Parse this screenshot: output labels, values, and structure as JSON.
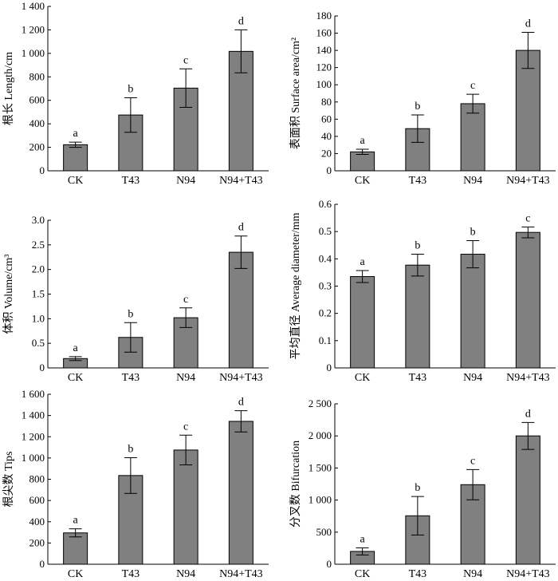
{
  "chart_data": [
    {
      "type": "bar",
      "id": "length",
      "categories": [
        "CK",
        "T43",
        "N94",
        "N94+T43"
      ],
      "values": [
        222,
        475,
        704,
        1017
      ],
      "errors": [
        22,
        147,
        164,
        183
      ],
      "significance": [
        "a",
        "b",
        "c",
        "d"
      ],
      "ylabel": "根长  Length/cm",
      "ylim": [
        0,
        1400
      ],
      "yticks": [
        0,
        200,
        400,
        600,
        800,
        1000,
        1200,
        1400
      ],
      "yticklabels": [
        "0",
        "200",
        "400",
        "600",
        "800",
        "1 000",
        "1 200",
        "1 400"
      ]
    },
    {
      "type": "bar",
      "id": "surface-area",
      "categories": [
        "CK",
        "T43",
        "N94",
        "N94+T43"
      ],
      "values": [
        22,
        49,
        78,
        140
      ],
      "errors": [
        3,
        16,
        11,
        21
      ],
      "significance": [
        "a",
        "b",
        "c",
        "d"
      ],
      "ylabel": "表面积 Surface area/cm²",
      "ylim": [
        0,
        180
      ],
      "yticks": [
        0,
        20,
        40,
        60,
        80,
        100,
        120,
        140,
        160,
        180
      ],
      "yticklabels": [
        "0",
        "20",
        "40",
        "60",
        "80",
        "100",
        "120",
        "140",
        "160",
        "180"
      ]
    },
    {
      "type": "bar",
      "id": "volume",
      "categories": [
        "CK",
        "T43",
        "N94",
        "N94+T43"
      ],
      "values": [
        0.19,
        0.62,
        1.02,
        2.35
      ],
      "errors": [
        0.04,
        0.3,
        0.2,
        0.33
      ],
      "significance": [
        "a",
        "b",
        "c",
        "d"
      ],
      "ylabel": "体积  Volume/cm³",
      "ylim": [
        0,
        3.0
      ],
      "yticks": [
        0,
        0.5,
        1.0,
        1.5,
        2.0,
        2.5,
        3.0
      ],
      "yticklabels": [
        "0",
        "0.5",
        "1.0",
        "1.5",
        "2.0",
        "2.5",
        "3.0"
      ]
    },
    {
      "type": "bar",
      "id": "average-diameter",
      "categories": [
        "CK",
        "T43",
        "N94",
        "N94+T43"
      ],
      "values": [
        0.335,
        0.377,
        0.417,
        0.497
      ],
      "errors": [
        0.022,
        0.04,
        0.05,
        0.02
      ],
      "significance": [
        "a",
        "b",
        "b",
        "c"
      ],
      "ylabel": "平均直径  Average diameter/mm",
      "ylim": [
        0,
        0.6
      ],
      "yticks": [
        0,
        0.1,
        0.2,
        0.3,
        0.4,
        0.5,
        0.6
      ],
      "yticklabels": [
        "0",
        "0.1",
        "0.2",
        "0.3",
        "0.4",
        "0.5",
        "0.6"
      ]
    },
    {
      "type": "bar",
      "id": "tips",
      "categories": [
        "CK",
        "T43",
        "N94",
        "N94+T43"
      ],
      "values": [
        295,
        835,
        1075,
        1345
      ],
      "errors": [
        38,
        168,
        140,
        100
      ],
      "significance": [
        "a",
        "b",
        "c",
        "d"
      ],
      "ylabel": "根尖数  Tips",
      "ylim": [
        0,
        1600
      ],
      "yticks": [
        0,
        200,
        400,
        600,
        800,
        1000,
        1200,
        1400,
        1600
      ],
      "yticklabels": [
        "0",
        "200",
        "400",
        "600",
        "800",
        "1 000",
        "1 200",
        "1 400",
        "1 600"
      ]
    },
    {
      "type": "bar",
      "id": "bifurcation",
      "categories": [
        "CK",
        "T43",
        "N94",
        "N94+T43"
      ],
      "values": [
        200,
        755,
        1240,
        2000
      ],
      "errors": [
        55,
        300,
        235,
        210
      ],
      "significance": [
        "a",
        "b",
        "c",
        "d"
      ],
      "ylabel": "分叉数  Bifurcation",
      "ylim": [
        0,
        2500
      ],
      "yticks": [
        0,
        500,
        1000,
        1500,
        2000,
        2500
      ],
      "yticklabels": [
        "0",
        "500",
        "1 000",
        "1 500",
        "2 000",
        "2 500"
      ]
    }
  ]
}
